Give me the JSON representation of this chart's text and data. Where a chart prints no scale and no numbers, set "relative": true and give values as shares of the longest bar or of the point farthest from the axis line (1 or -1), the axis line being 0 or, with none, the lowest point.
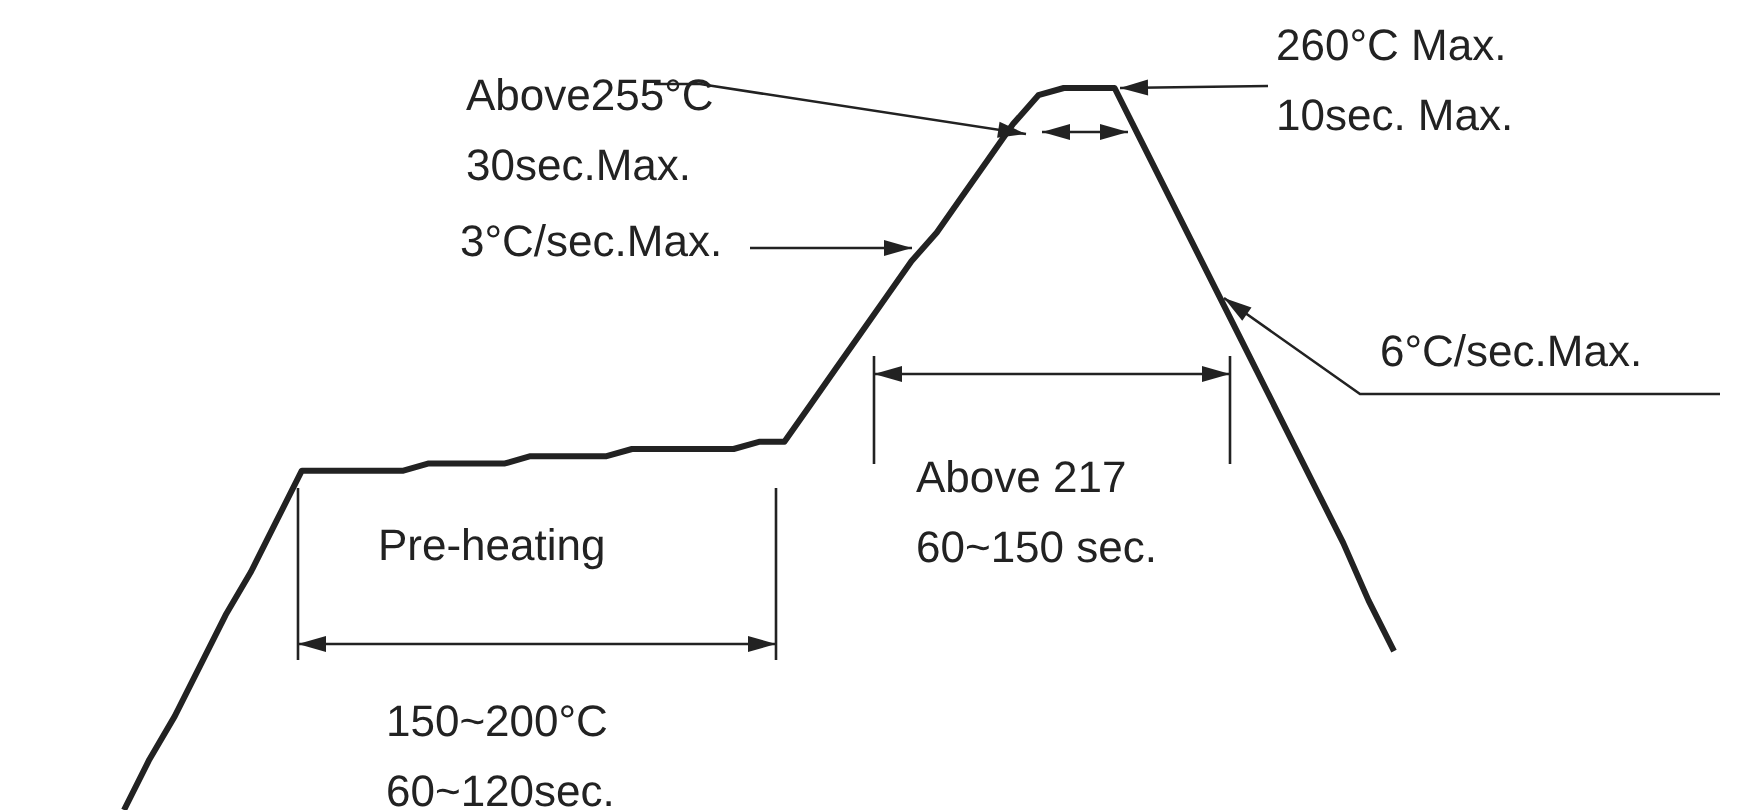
{
  "chart_data": {
    "type": "line",
    "relative": true,
    "categories": [
      null,
      null,
      null,
      null,
      null,
      null,
      null,
      null,
      null,
      null,
      null,
      null,
      null,
      null,
      null,
      null,
      null,
      null,
      null,
      null,
      null,
      null,
      null,
      null,
      null,
      null,
      null,
      null,
      null,
      null,
      null,
      null,
      null,
      null,
      null,
      null,
      null,
      null,
      null,
      null,
      null,
      null,
      null,
      null,
      null,
      null,
      null,
      null,
      null,
      null,
      null
    ],
    "series": [
      {
        "color": "#222222",
        "values": [
          0,
          0.07,
          0.13,
          0.2,
          0.27,
          0.33,
          0.4,
          0.47,
          0.47,
          0.47,
          0.47,
          0.47,
          0.48,
          0.48,
          0.48,
          0.48,
          0.49,
          0.49,
          0.49,
          0.49,
          0.5,
          0.5,
          0.5,
          0.5,
          0.5,
          0.51,
          0.51,
          0.56,
          0.61,
          0.66,
          0.71,
          0.76,
          0.8,
          0.85,
          0.9,
          0.95,
          0.99,
          1,
          1,
          1,
          0.93,
          0.86,
          0.79,
          0.72,
          0.65,
          0.58,
          0.51,
          0.44,
          0.37,
          0.29,
          0.22
        ]
      }
    ],
    "annotations": [
      "Above255°C\n30sec.Max.",
      "260°C Max.\n10sec. Max.",
      "3°C/sec.Max.",
      "6°C/sec.Max.",
      "Above 217\n60~150 sec.",
      "Pre-heating",
      "150~200°C\n60~120sec."
    ]
  }
}
